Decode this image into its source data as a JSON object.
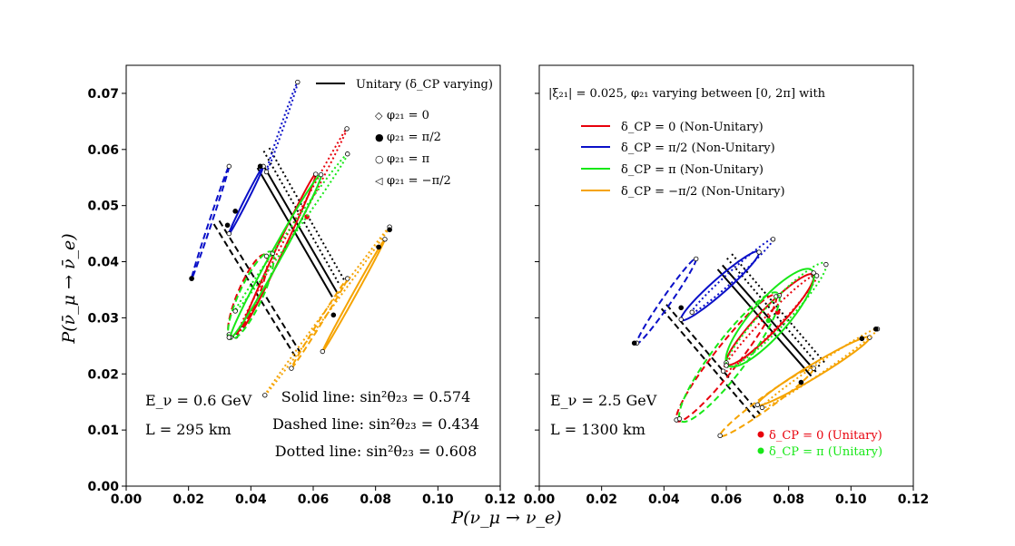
{
  "chart_data": {
    "type": "scatter",
    "xlabel": "P(ν_μ → ν_e)",
    "ylabel": "P(ν̄_μ → ν̄_e)",
    "xlim": [
      0.0,
      0.12
    ],
    "ylim": [
      0.0,
      0.075
    ],
    "xticks": [
      "0.00",
      "0.02",
      "0.04",
      "0.06",
      "0.08",
      "0.10",
      "0.12"
    ],
    "yticks": [
      "0.00",
      "0.01",
      "0.02",
      "0.03",
      "0.04",
      "0.05",
      "0.06",
      "0.07"
    ],
    "colors": {
      "red": "#e8000b",
      "blue": "#0a10c8",
      "green": "#17e817",
      "orange": "#f5a300",
      "black": "#000000"
    },
    "linestyles": {
      "Solid": "solid",
      "Dashed": "dashed",
      "Dotted": "dotted"
    },
    "panels": [
      {
        "id": "left",
        "energy_text": "E_ν = 0.6 GeV",
        "baseline_text": "L = 295 km",
        "theta_lines": [
          "Solid line: sin²θ₂₃ = 0.574",
          "Dashed line: sin²θ₂₃ = 0.434",
          "Dotted line: sin²θ₂₃ = 0.608"
        ],
        "legend": {
          "unitary_label": "Unitary (δ_CP varying)",
          "markers": [
            {
              "symbol": "◇",
              "label": "φ₂₁ = 0"
            },
            {
              "symbol": "●",
              "label": "φ₂₁ = π/2"
            },
            {
              "symbol": "○",
              "label": "φ₂₁ = π"
            },
            {
              "symbol": "◁",
              "label": "φ₂₁ = −π/2"
            }
          ]
        },
        "unitary": {
          "solid": [
            [
              0.043,
              0.057
            ],
            [
              0.067,
              0.034
            ]
          ],
          "dashed": [
            [
              0.029,
              0.047
            ],
            [
              0.055,
              0.0235
            ]
          ],
          "dotted": [
            [
              0.045,
              0.06
            ],
            [
              0.069,
              0.0365
            ]
          ]
        },
        "series": [
          {
            "name": "δCP=0",
            "color": "red",
            "ellipses": [
              {
                "style": "solid",
                "center": [
                  0.049,
                  0.0418
                ],
                "u": [
                  0.0118,
                  0.0138
                ],
                "v": [
                  0.0007,
                  -0.0007
                ]
              },
              {
                "style": "dashed",
                "center": [
                  0.039,
                  0.034
                ],
                "u": [
                  0.006,
                  0.007
                ],
                "v": [
                  0.002,
                  -0.002
                ]
              },
              {
                "style": "dotted",
                "center": [
                  0.053,
                  0.0452
                ],
                "u": [
                  0.0178,
                  0.0185
                ],
                "v": [
                  0.0005,
                  -0.0005
                ]
              }
            ],
            "points": [
              [
                0.058,
                0.048
              ]
            ]
          },
          {
            "name": "δCP=π/2",
            "color": "blue",
            "ellipses": [
              {
                "style": "solid",
                "center": [
                  0.0385,
                  0.051
                ],
                "u": [
                  0.0055,
                  0.006
                ],
                "v": [
                  0.0003,
                  -0.0003
                ]
              },
              {
                "style": "dashed",
                "center": [
                  0.027,
                  0.047
                ],
                "u": [
                  0.006,
                  0.01
                ],
                "v": [
                  0.0003,
                  -0.0003
                ]
              },
              {
                "style": "dotted",
                "center": [
                  0.05,
                  0.064
                ],
                "u": [
                  0.005,
                  0.008
                ],
                "v": [
                  0.0003,
                  -0.0003
                ]
              }
            ],
            "points": [
              [
                0.021,
                0.037
              ],
              [
                0.0325,
                0.0465
              ],
              [
                0.035,
                0.049
              ],
              [
                0.043,
                0.057
              ]
            ]
          },
          {
            "name": "δCP=π",
            "color": "green",
            "ellipses": [
              {
                "style": "solid",
                "center": [
                  0.048,
                  0.041
                ],
                "u": [
                  0.0145,
                  0.0145
                ],
                "v": [
                  0.001,
                  -0.001
                ]
              },
              {
                "style": "dashed",
                "center": [
                  0.04,
                  0.034
                ],
                "u": [
                  0.007,
                  0.0075
                ],
                "v": [
                  0.0022,
                  -0.0022
                ]
              },
              {
                "style": "dotted",
                "center": [
                  0.053,
                  0.0452
                ],
                "u": [
                  0.018,
                  0.014
                ],
                "v": [
                  0.0006,
                  -0.0006
                ]
              }
            ],
            "points": []
          },
          {
            "name": "δCP=−π/2",
            "color": "orange",
            "ellipses": [
              {
                "style": "solid",
                "center": [
                  0.073,
                  0.034
                ],
                "u": [
                  0.01,
                  0.01
                ],
                "v": [
                  0.0003,
                  -0.0003
                ]
              },
              {
                "style": "dashed",
                "center": [
                  0.062,
                  0.029
                ],
                "u": [
                  0.009,
                  0.008
                ],
                "v": [
                  0.0003,
                  -0.0003
                ]
              },
              {
                "style": "dotted",
                "center": [
                  0.0645,
                  0.0312
                ],
                "u": [
                  0.02,
                  0.015
                ],
                "v": [
                  0.0003,
                  -0.0003
                ]
              }
            ],
            "points": [
              [
                0.0845,
                0.0457
              ],
              [
                0.081,
                0.0426
              ],
              [
                0.0665,
                0.0305
              ]
            ]
          }
        ]
      },
      {
        "id": "right",
        "energy_text": "E_ν = 2.5 GeV",
        "baseline_text": "L = 1300 km",
        "header_text": "|ξ₂₁| = 0.025, φ₂₁ varying between [0, 2π] with",
        "legend": [
          {
            "color": "red",
            "label": "δ_CP = 0 (Non-Unitary)"
          },
          {
            "color": "blue",
            "label": "δ_CP = π/2 (Non-Unitary)"
          },
          {
            "color": "green",
            "label": "δ_CP = π (Non-Unitary)"
          },
          {
            "color": "orange",
            "label": "δ_CP = −π/2 (Non-Unitary)"
          }
        ],
        "unitary_points_legend": [
          {
            "color": "red",
            "label": "δ_CP = 0 (Unitary)"
          },
          {
            "color": "green",
            "label": "δ_CP = π (Unitary)"
          }
        ],
        "unitary": {
          "solid": [
            [
              0.058,
              0.039
            ],
            [
              0.088,
              0.02
            ]
          ],
          "dashed": [
            [
              0.04,
              0.032
            ],
            [
              0.07,
              0.0125
            ]
          ],
          "dotted": [
            [
              0.061,
              0.041
            ],
            [
              0.091,
              0.0215
            ]
          ]
        },
        "series": [
          {
            "name": "δCP=0",
            "color": "red",
            "ellipses": [
              {
                "style": "solid",
                "center": [
                  0.074,
                  0.0297
                ],
                "u": [
                  0.014,
                  0.0078
                ],
                "v": [
                  0.0012,
                  -0.0022
                ]
              },
              {
                "style": "dashed",
                "center": [
                  0.06,
                  0.0228
                ],
                "u": [
                  0.016,
                  0.011
                ],
                "v": [
                  0.0015,
                  -0.0025
                ]
              },
              {
                "style": "dotted",
                "center": [
                  0.074,
                  0.029
                ],
                "u": [
                  0.015,
                  0.0085
                ],
                "v": [
                  0.0008,
                  -0.0015
                ]
              }
            ],
            "points": [
              [
                0.0765,
                0.031
              ]
            ]
          },
          {
            "name": "δCP=π/2",
            "color": "blue",
            "ellipses": [
              {
                "style": "solid",
                "center": [
                  0.058,
                  0.0357
                ],
                "u": [
                  0.0125,
                  0.006
                ],
                "v": [
                  0.0007,
                  -0.0014
                ]
              },
              {
                "style": "dashed",
                "center": [
                  0.0408,
                  0.033
                ],
                "u": [
                  0.0095,
                  0.0075
                ],
                "v": [
                  0.0005,
                  -0.001
                ]
              },
              {
                "style": "dotted",
                "center": [
                  0.062,
                  0.0375
                ],
                "u": [
                  0.013,
                  0.0065
                ],
                "v": [
                  0.0004,
                  -0.0009
                ]
              }
            ],
            "points": [
              [
                0.0305,
                0.0255
              ],
              [
                0.0455,
                0.0318
              ]
            ]
          },
          {
            "name": "δCP=π",
            "color": "green",
            "ellipses": [
              {
                "style": "solid",
                "center": [
                  0.074,
                  0.03
                ],
                "u": [
                  0.014,
                  0.008
                ],
                "v": [
                  0.002,
                  -0.0035
                ]
              },
              {
                "style": "dashed",
                "center": [
                  0.061,
                  0.023
                ],
                "u": [
                  0.016,
                  0.011
                ],
                "v": [
                  0.002,
                  -0.0035
                ]
              },
              {
                "style": "dotted",
                "center": [
                  0.076,
                  0.0305
                ],
                "u": [
                  0.016,
                  0.009
                ],
                "v": [
                  0.0012,
                  -0.0024
                ]
              }
            ],
            "points": [
              [
                0.0735,
                0.0295
              ]
            ]
          },
          {
            "name": "δCP=−π/2",
            "color": "orange",
            "ellipses": [
              {
                "style": "solid",
                "center": [
                  0.088,
                  0.0205
                ],
                "u": [
                  0.018,
                  0.006
                ],
                "v": [
                  0.0005,
                  -0.0012
                ]
              },
              {
                "style": "dashed",
                "center": [
                  0.073,
                  0.015
                ],
                "u": [
                  0.015,
                  0.006
                ],
                "v": [
                  0.0005,
                  -0.0012
                ]
              },
              {
                "style": "dotted",
                "center": [
                  0.09,
                  0.021
                ],
                "u": [
                  0.0185,
                  0.007
                ],
                "v": [
                  0.0004,
                  -0.0009
                ]
              }
            ],
            "points": [
              [
                0.108,
                0.028
              ],
              [
                0.1035,
                0.0263
              ],
              [
                0.084,
                0.0185
              ]
            ]
          }
        ]
      }
    ]
  }
}
